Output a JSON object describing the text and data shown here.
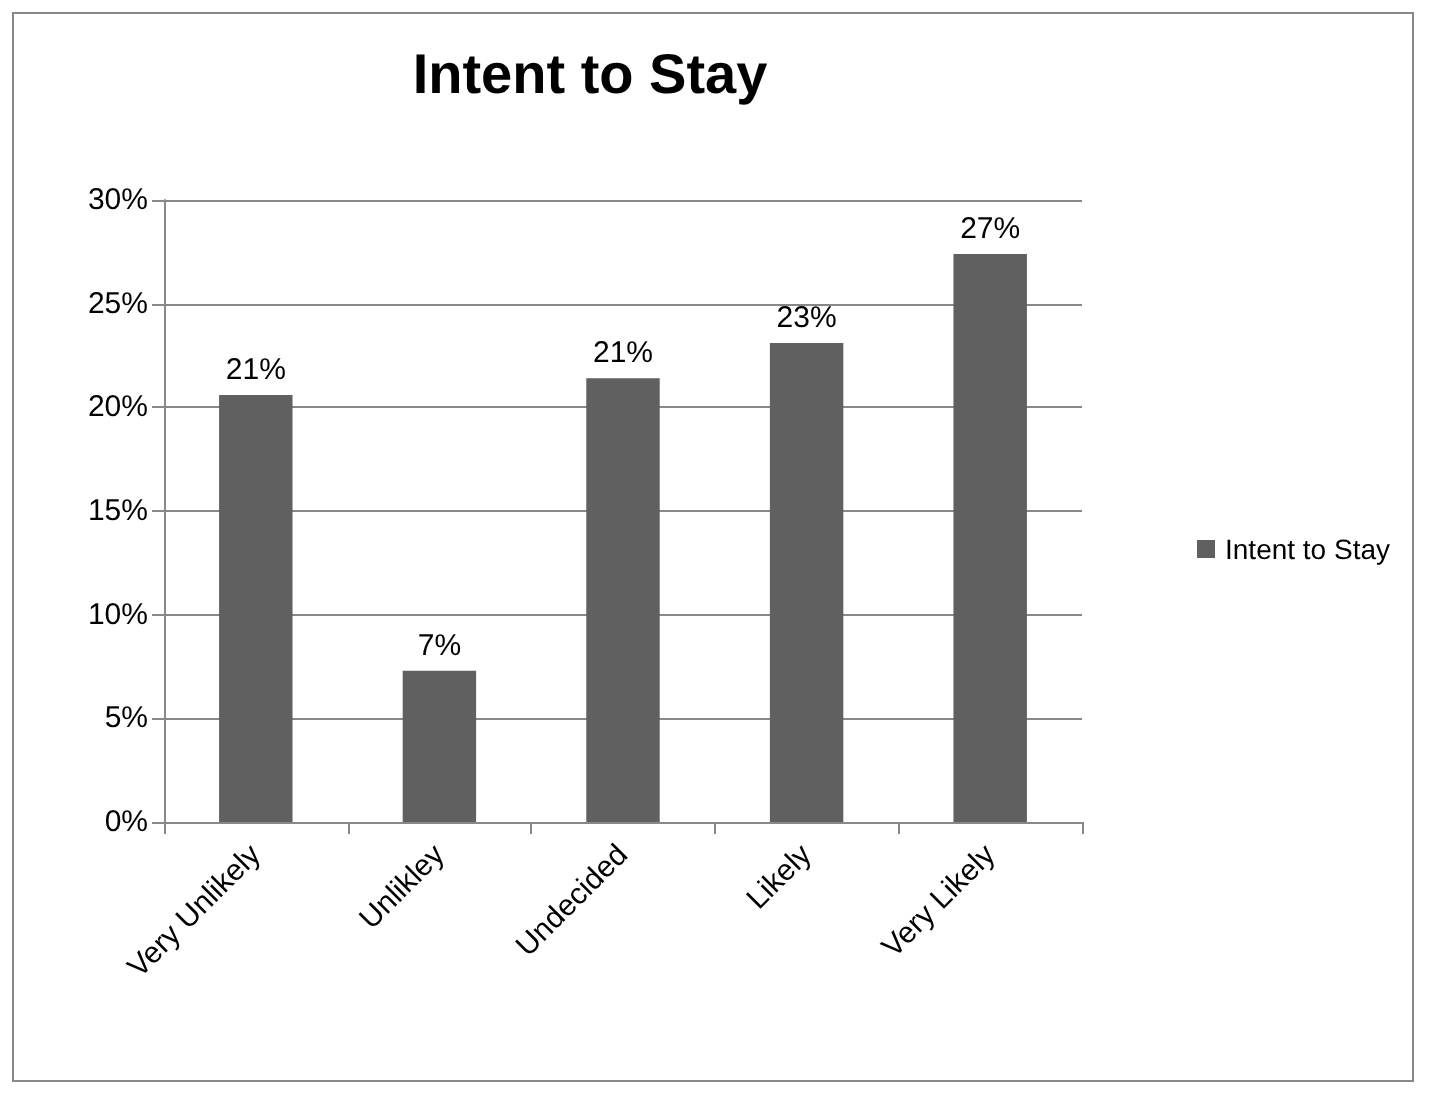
{
  "chart_data": {
    "type": "bar",
    "title": "Intent to Stay",
    "categories": [
      "Very Unlikely",
      "Unlikley",
      "Undecided",
      "Likely",
      "Very Likely"
    ],
    "series": [
      {
        "name": "Intent to Stay",
        "color": "#606060",
        "values": [
          20.6,
          7.3,
          21.4,
          23.1,
          27.4
        ],
        "value_labels": [
          "21%",
          "7%",
          "21%",
          "23%",
          "27%"
        ]
      }
    ],
    "ylim": [
      0,
      30
    ],
    "yticks": [
      {
        "value": 0,
        "label": "0%"
      },
      {
        "value": 5,
        "label": "5%"
      },
      {
        "value": 10,
        "label": "10%"
      },
      {
        "value": 15,
        "label": "15%"
      },
      {
        "value": 20,
        "label": "20%"
      },
      {
        "value": 25,
        "label": "25%"
      },
      {
        "value": 30,
        "label": "30%"
      }
    ],
    "grid": "y",
    "legend": "right"
  }
}
